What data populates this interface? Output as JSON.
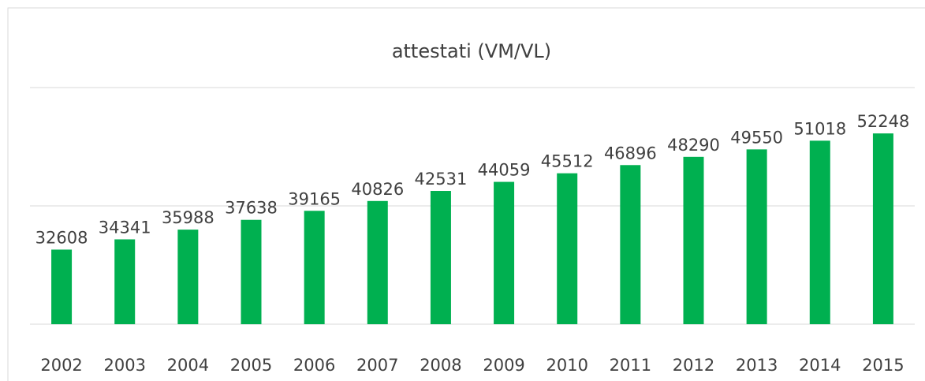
{
  "chart_data": {
    "type": "bar",
    "title": "attestati (VM/VL)",
    "categories": [
      "2002",
      "2003",
      "2004",
      "2005",
      "2006",
      "2007",
      "2008",
      "2009",
      "2010",
      "2011",
      "2012",
      "2013",
      "2014",
      "2015"
    ],
    "values": [
      32608,
      34341,
      35988,
      37638,
      39165,
      40826,
      42531,
      44059,
      45512,
      46896,
      48290,
      49550,
      51018,
      52248
    ],
    "color": "#00b050",
    "ylim": [
      20000,
      60000
    ],
    "yticks": [
      20000,
      40000,
      60000
    ],
    "grid": true
  }
}
